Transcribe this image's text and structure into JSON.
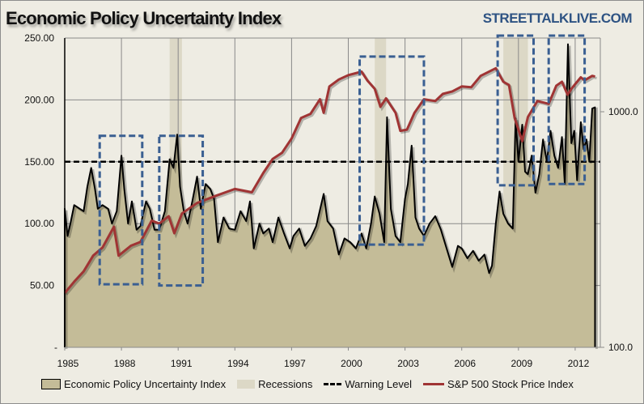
{
  "title": "Economic Policy Uncertainty Index",
  "brand": "STREETTALKLIVE.COM",
  "colors": {
    "epu_fill": "#c4bc98",
    "epu_line": "#000000",
    "recession": "#dcd8c6",
    "warning": "#000000",
    "sp500": "#a03434",
    "annotation_box": "#3a5f92",
    "plot_bg": "#eeece3",
    "grid": "#8a8a8a"
  },
  "chart_data": {
    "type": "area",
    "title": "Economic Policy Uncertainty Index",
    "xlim": [
      1985,
      2013.33
    ],
    "x_ticks": [
      "1985",
      "1988",
      "1991",
      "1994",
      "1997",
      "2000",
      "2003",
      "2006",
      "2009",
      "2012"
    ],
    "y_left": {
      "lim": [
        0,
        250
      ],
      "ticks": [
        "-",
        "50.00",
        "100.00",
        "150.00",
        "200.00",
        "250.00"
      ],
      "grid": true
    },
    "y_right": {
      "scale": "log",
      "lim": [
        100,
        2055
      ],
      "ticks": [
        "100.0",
        "1000.0"
      ]
    },
    "legend_position": "bottom",
    "series": [
      {
        "name": "Economic Policy Uncertainty Index",
        "axis": "left",
        "type": "area",
        "points": [
          [
            1985,
            112
          ],
          [
            1985.15,
            90
          ],
          [
            1985.3,
            100
          ],
          [
            1985.5,
            115
          ],
          [
            1985.8,
            112
          ],
          [
            1986,
            110
          ],
          [
            1986.2,
            130
          ],
          [
            1986.4,
            145
          ],
          [
            1986.6,
            128
          ],
          [
            1986.75,
            112
          ],
          [
            1987,
            115
          ],
          [
            1987.3,
            112
          ],
          [
            1987.5,
            100
          ],
          [
            1987.75,
            110
          ],
          [
            1988,
            155
          ],
          [
            1988.15,
            128
          ],
          [
            1988.35,
            100
          ],
          [
            1988.55,
            118
          ],
          [
            1988.8,
            95
          ],
          [
            1989,
            98
          ],
          [
            1989.3,
            118
          ],
          [
            1989.5,
            112
          ],
          [
            1989.75,
            95
          ],
          [
            1990,
            95
          ],
          [
            1990.3,
            110
          ],
          [
            1990.55,
            152
          ],
          [
            1990.75,
            145
          ],
          [
            1990.95,
            172
          ],
          [
            1991.1,
            130
          ],
          [
            1991.3,
            110
          ],
          [
            1991.5,
            100
          ],
          [
            1991.75,
            118
          ],
          [
            1992,
            138
          ],
          [
            1992.2,
            112
          ],
          [
            1992.45,
            132
          ],
          [
            1992.7,
            128
          ],
          [
            1992.9,
            120
          ],
          [
            1993.1,
            85
          ],
          [
            1993.4,
            105
          ],
          [
            1993.7,
            96
          ],
          [
            1994,
            95
          ],
          [
            1994.3,
            110
          ],
          [
            1994.6,
            102
          ],
          [
            1994.8,
            118
          ],
          [
            1995,
            80
          ],
          [
            1995.3,
            100
          ],
          [
            1995.5,
            92
          ],
          [
            1995.8,
            96
          ],
          [
            1996,
            85
          ],
          [
            1996.3,
            105
          ],
          [
            1996.6,
            92
          ],
          [
            1996.9,
            80
          ],
          [
            1997.1,
            90
          ],
          [
            1997.4,
            96
          ],
          [
            1997.7,
            82
          ],
          [
            1998,
            88
          ],
          [
            1998.3,
            98
          ],
          [
            1998.7,
            124
          ],
          [
            1998.9,
            102
          ],
          [
            1999.2,
            96
          ],
          [
            1999.5,
            75
          ],
          [
            1999.8,
            88
          ],
          [
            2000.1,
            85
          ],
          [
            2000.4,
            80
          ],
          [
            2000.7,
            92
          ],
          [
            2000.95,
            80
          ],
          [
            2001.2,
            100
          ],
          [
            2001.4,
            122
          ],
          [
            2001.65,
            108
          ],
          [
            2001.9,
            85
          ],
          [
            2002.05,
            186
          ],
          [
            2002.25,
            112
          ],
          [
            2002.5,
            90
          ],
          [
            2002.75,
            85
          ],
          [
            2003,
            120
          ],
          [
            2003.15,
            132
          ],
          [
            2003.35,
            163
          ],
          [
            2003.55,
            105
          ],
          [
            2003.75,
            96
          ],
          [
            2004,
            90
          ],
          [
            2004.3,
            100
          ],
          [
            2004.6,
            106
          ],
          [
            2004.9,
            95
          ],
          [
            2005.2,
            80
          ],
          [
            2005.5,
            65
          ],
          [
            2005.8,
            82
          ],
          [
            2006,
            80
          ],
          [
            2006.3,
            72
          ],
          [
            2006.6,
            78
          ],
          [
            2006.9,
            70
          ],
          [
            2007.2,
            75
          ],
          [
            2007.45,
            60
          ],
          [
            2007.6,
            66
          ],
          [
            2007.8,
            100
          ],
          [
            2008,
            126
          ],
          [
            2008.2,
            108
          ],
          [
            2008.45,
            100
          ],
          [
            2008.7,
            96
          ],
          [
            2008.85,
            185
          ],
          [
            2009,
            150
          ],
          [
            2009.2,
            180
          ],
          [
            2009.35,
            142
          ],
          [
            2009.5,
            140
          ],
          [
            2009.7,
            155
          ],
          [
            2009.9,
            125
          ],
          [
            2010.1,
            140
          ],
          [
            2010.3,
            168
          ],
          [
            2010.5,
            150
          ],
          [
            2010.7,
            175
          ],
          [
            2010.9,
            155
          ],
          [
            2011.1,
            145
          ],
          [
            2011.3,
            170
          ],
          [
            2011.45,
            132
          ],
          [
            2011.62,
            245
          ],
          [
            2011.8,
            165
          ],
          [
            2011.95,
            175
          ],
          [
            2012.1,
            135
          ],
          [
            2012.3,
            182
          ],
          [
            2012.45,
            160
          ],
          [
            2012.6,
            168
          ],
          [
            2012.75,
            150
          ],
          [
            2012.9,
            193
          ],
          [
            2013.05,
            194
          ]
        ]
      },
      {
        "name": "S&P 500 Stock Price Index",
        "axis": "right",
        "type": "line",
        "points": [
          [
            1985,
            170
          ],
          [
            1985.5,
            190
          ],
          [
            1986,
            210
          ],
          [
            1986.5,
            245
          ],
          [
            1987,
            265
          ],
          [
            1987.6,
            325
          ],
          [
            1987.85,
            245
          ],
          [
            1988.5,
            270
          ],
          [
            1989,
            280
          ],
          [
            1989.6,
            345
          ],
          [
            1990,
            335
          ],
          [
            1990.5,
            360
          ],
          [
            1990.8,
            305
          ],
          [
            1991.2,
            370
          ],
          [
            1992,
            410
          ],
          [
            1993,
            440
          ],
          [
            1994,
            470
          ],
          [
            1994.9,
            455
          ],
          [
            1995.5,
            550
          ],
          [
            1996,
            630
          ],
          [
            1996.5,
            670
          ],
          [
            1997,
            770
          ],
          [
            1997.5,
            940
          ],
          [
            1998,
            980
          ],
          [
            1998.5,
            1130
          ],
          [
            1998.7,
            990
          ],
          [
            1999,
            1280
          ],
          [
            1999.5,
            1370
          ],
          [
            2000,
            1430
          ],
          [
            2000.7,
            1480
          ],
          [
            2001,
            1360
          ],
          [
            2001.4,
            1250
          ],
          [
            2001.7,
            1050
          ],
          [
            2002,
            1140
          ],
          [
            2002.5,
            990
          ],
          [
            2002.75,
            830
          ],
          [
            2003.1,
            840
          ],
          [
            2003.5,
            990
          ],
          [
            2004,
            1130
          ],
          [
            2004.6,
            1110
          ],
          [
            2005,
            1190
          ],
          [
            2005.5,
            1220
          ],
          [
            2006,
            1280
          ],
          [
            2006.5,
            1270
          ],
          [
            2007,
            1420
          ],
          [
            2007.8,
            1530
          ],
          [
            2008.2,
            1340
          ],
          [
            2008.5,
            1300
          ],
          [
            2008.8,
            940
          ],
          [
            2009.2,
            750
          ],
          [
            2009.5,
            950
          ],
          [
            2010,
            1110
          ],
          [
            2010.4,
            1090
          ],
          [
            2010.6,
            1080
          ],
          [
            2011,
            1290
          ],
          [
            2011.3,
            1340
          ],
          [
            2011.6,
            1180
          ],
          [
            2011.8,
            1250
          ],
          [
            2012,
            1310
          ],
          [
            2012.3,
            1400
          ],
          [
            2012.5,
            1360
          ],
          [
            2012.9,
            1420
          ],
          [
            2013.05,
            1410
          ]
        ]
      },
      {
        "name": "Warning Level",
        "axis": "left",
        "type": "hline",
        "value": 150
      },
      {
        "name": "Recessions",
        "type": "spans",
        "spans": [
          [
            1990.55,
            1991.2
          ],
          [
            2001.4,
            2002.0
          ],
          [
            2008.2,
            2009.5
          ]
        ]
      }
    ],
    "annotations": [
      {
        "type": "dashed-box",
        "x": [
          1986.85,
          1989.1
        ],
        "y": [
          51,
          171
        ]
      },
      {
        "type": "dashed-box",
        "x": [
          1990.0,
          1992.3
        ],
        "y": [
          50,
          171
        ]
      },
      {
        "type": "dashed-box",
        "x": [
          2000.6,
          2004.0
        ],
        "y": [
          83,
          235
        ]
      },
      {
        "type": "dashed-box",
        "x": [
          2007.9,
          2009.8
        ],
        "y": [
          131,
          252
        ]
      },
      {
        "type": "dashed-box",
        "x": [
          2010.6,
          2012.5
        ],
        "y": [
          132,
          252
        ]
      }
    ]
  },
  "legend": [
    {
      "label": "Economic Policy Uncertainty Index"
    },
    {
      "label": "Recessions"
    },
    {
      "label": "Warning Level"
    },
    {
      "label": "S&P 500 Stock Price Index"
    }
  ]
}
